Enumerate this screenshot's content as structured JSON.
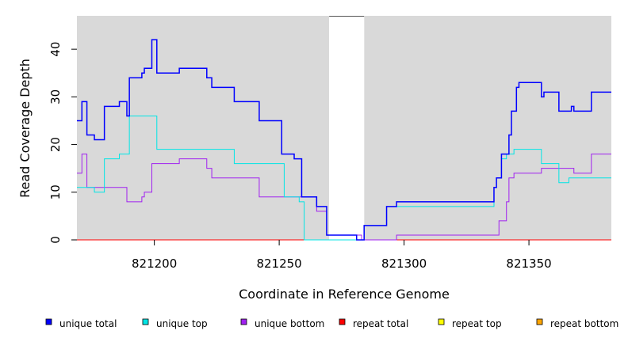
{
  "chart_data": {
    "type": "line",
    "title": "",
    "xlabel": "Coordinate in Reference Genome",
    "ylabel": "Read Coverage Depth",
    "xlim": [
      821169,
      821383
    ],
    "ylim": [
      0,
      47
    ],
    "x_ticks": [
      821200,
      821250,
      821300,
      821350
    ],
    "y_ticks": [
      0,
      10,
      20,
      30,
      40
    ],
    "grid": false,
    "background_color": "#d9d9d9",
    "gap_region": [
      821270,
      821284
    ],
    "legend_position": "bottom",
    "series": [
      {
        "name": "unique total",
        "color": "#0000ff",
        "points": [
          [
            821169,
            25
          ],
          [
            821171,
            29
          ],
          [
            821173,
            22
          ],
          [
            821176,
            21
          ],
          [
            821180,
            28
          ],
          [
            821186,
            29
          ],
          [
            821189,
            26
          ],
          [
            821190,
            34
          ],
          [
            821195,
            35
          ],
          [
            821196,
            36
          ],
          [
            821199,
            42
          ],
          [
            821201,
            35
          ],
          [
            821210,
            36
          ],
          [
            821221,
            34
          ],
          [
            821223,
            32
          ],
          [
            821232,
            29
          ],
          [
            821242,
            25
          ],
          [
            821251,
            18
          ],
          [
            821256,
            17
          ],
          [
            821259,
            9
          ],
          [
            821265,
            7
          ],
          [
            821269,
            1
          ],
          [
            821281,
            0
          ],
          [
            821284,
            3
          ],
          [
            821293,
            7
          ],
          [
            821297,
            8
          ],
          [
            821336,
            11
          ],
          [
            821337,
            13
          ],
          [
            821339,
            18
          ],
          [
            821342,
            22
          ],
          [
            821343,
            27
          ],
          [
            821345,
            32
          ],
          [
            821346,
            33
          ],
          [
            821355,
            30
          ],
          [
            821356,
            31
          ],
          [
            821362,
            27
          ],
          [
            821367,
            28
          ],
          [
            821368,
            27
          ],
          [
            821375,
            31
          ],
          [
            821383,
            31
          ]
        ]
      },
      {
        "name": "unique top",
        "color": "#00e5e5",
        "points": [
          [
            821169,
            11
          ],
          [
            821176,
            10
          ],
          [
            821180,
            17
          ],
          [
            821186,
            18
          ],
          [
            821190,
            26
          ],
          [
            821201,
            19
          ],
          [
            821232,
            16
          ],
          [
            821252,
            9
          ],
          [
            821258,
            8
          ],
          [
            821260,
            0
          ],
          [
            821284,
            3
          ],
          [
            821293,
            7
          ],
          [
            821336,
            11
          ],
          [
            821337,
            13
          ],
          [
            821339,
            17
          ],
          [
            821341,
            18
          ],
          [
            821344,
            19
          ],
          [
            821355,
            16
          ],
          [
            821362,
            12
          ],
          [
            821366,
            13
          ],
          [
            821383,
            13
          ]
        ]
      },
      {
        "name": "unique bottom",
        "color": "#a020f0",
        "points": [
          [
            821169,
            14
          ],
          [
            821171,
            18
          ],
          [
            821173,
            11
          ],
          [
            821189,
            8
          ],
          [
            821195,
            9
          ],
          [
            821196,
            10
          ],
          [
            821199,
            16
          ],
          [
            821210,
            17
          ],
          [
            821221,
            15
          ],
          [
            821223,
            13
          ],
          [
            821242,
            9
          ],
          [
            821265,
            6
          ],
          [
            821269,
            1
          ],
          [
            821283,
            0
          ],
          [
            821297,
            1
          ],
          [
            821338,
            4
          ],
          [
            821341,
            8
          ],
          [
            821342,
            13
          ],
          [
            821344,
            14
          ],
          [
            821355,
            15
          ],
          [
            821368,
            14
          ],
          [
            821375,
            18
          ],
          [
            821383,
            18
          ]
        ]
      },
      {
        "name": "repeat total",
        "color": "#ff0000",
        "points": [
          [
            821169,
            0
          ],
          [
            821383,
            0
          ]
        ]
      },
      {
        "name": "repeat top",
        "color": "#ffff00",
        "points": [
          [
            821169,
            0
          ],
          [
            821383,
            0
          ]
        ]
      },
      {
        "name": "repeat bottom",
        "color": "#ffa500",
        "points": [
          [
            821169,
            0
          ],
          [
            821383,
            0
          ]
        ]
      }
    ]
  }
}
